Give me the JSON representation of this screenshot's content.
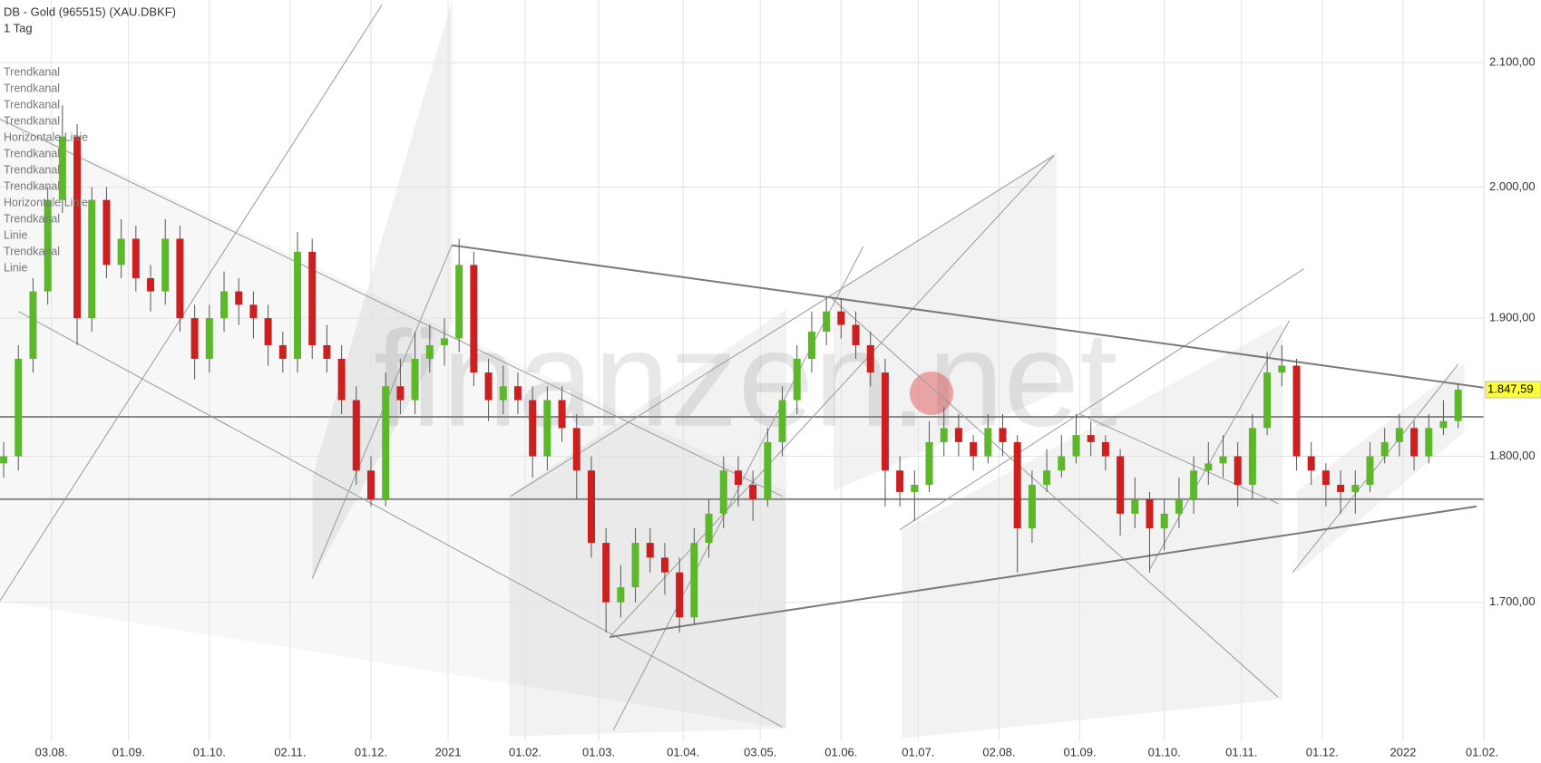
{
  "chart_data": {
    "type": "candlestick",
    "title": "DB - Gold (965515) (XAU.DBKF)",
    "subtitle": "1 Tag",
    "watermark": "finanzen.net",
    "drawing_labels": [
      "Trendkanal",
      "Trendkanal",
      "Trendkanal",
      "Trendkanal",
      "Horizontale Linie",
      "Trendkanal",
      "Trendkanal",
      "Trendkanal",
      "Horizontale Linie",
      "Trendkanal",
      "Linie",
      "Trendkanal",
      "Linie"
    ],
    "log_scale": true,
    "grid": true,
    "up_color": "#5cb82a",
    "down_color": "#cc1f1f",
    "xlim": [
      0,
      404
    ],
    "xticks": [
      {
        "value": 14,
        "label": "03.08."
      },
      {
        "value": 35,
        "label": "01.09."
      },
      {
        "value": 57,
        "label": "01.10."
      },
      {
        "value": 79,
        "label": "02.11."
      },
      {
        "value": 101,
        "label": "01.12."
      },
      {
        "value": 122,
        "label": "2021"
      },
      {
        "value": 143,
        "label": "01.02."
      },
      {
        "value": 163,
        "label": "01.03."
      },
      {
        "value": 186,
        "label": "01.04."
      },
      {
        "value": 207,
        "label": "03.05."
      },
      {
        "value": 229,
        "label": "01.06."
      },
      {
        "value": 250,
        "label": "01.07."
      },
      {
        "value": 272,
        "label": "02.08."
      },
      {
        "value": 294,
        "label": "01.09."
      },
      {
        "value": 317,
        "label": "01.10."
      },
      {
        "value": 338,
        "label": "01.11."
      },
      {
        "value": 360,
        "label": "01.12."
      },
      {
        "value": 382,
        "label": "2022"
      },
      {
        "value": 404,
        "label": "01.02."
      }
    ],
    "ylim": [
      1610,
      2152
    ],
    "yticks": [
      {
        "value": 1700,
        "label": "1.700,00"
      },
      {
        "value": 1800,
        "label": "1.800,00"
      },
      {
        "value": 1900,
        "label": "1.900,00"
      },
      {
        "value": 2000,
        "label": "2.000,00"
      },
      {
        "value": 2100,
        "label": "2.100,00"
      }
    ],
    "last_price": {
      "value": 1847.59,
      "label": "1.847,59"
    },
    "x": [
      1,
      5,
      9,
      13,
      17,
      21,
      25,
      29,
      33,
      37,
      41,
      45,
      49,
      53,
      57,
      61,
      65,
      69,
      73,
      77,
      81,
      85,
      89,
      93,
      97,
      101,
      105,
      109,
      113,
      117,
      121,
      125,
      129,
      133,
      137,
      141,
      145,
      149,
      153,
      157,
      161,
      165,
      169,
      173,
      177,
      181,
      185,
      189,
      193,
      197,
      201,
      205,
      209,
      213,
      217,
      221,
      225,
      229,
      233,
      237,
      241,
      245,
      249,
      253,
      257,
      261,
      265,
      269,
      273,
      277,
      281,
      285,
      289,
      293,
      297,
      301,
      305,
      309,
      313,
      317,
      321,
      325,
      329,
      333,
      337,
      341,
      345,
      349,
      353,
      357,
      361,
      365,
      369,
      373,
      377,
      381,
      385,
      389,
      393,
      397
    ],
    "open": [
      1795,
      1800,
      1870,
      1920,
      1990,
      2040,
      1900,
      1990,
      1940,
      1960,
      1930,
      1920,
      1960,
      1900,
      1870,
      1900,
      1920,
      1910,
      1900,
      1880,
      1870,
      1950,
      1880,
      1870,
      1840,
      1790,
      1770,
      1850,
      1840,
      1870,
      1880,
      1885,
      1940,
      1860,
      1840,
      1850,
      1840,
      1800,
      1840,
      1820,
      1790,
      1740,
      1700,
      1710,
      1740,
      1730,
      1720,
      1690,
      1740,
      1760,
      1790,
      1780,
      1770,
      1810,
      1840,
      1870,
      1890,
      1905,
      1895,
      1880,
      1860,
      1790,
      1775,
      1780,
      1810,
      1820,
      1810,
      1800,
      1820,
      1810,
      1750,
      1780,
      1790,
      1800,
      1815,
      1810,
      1800,
      1760,
      1770,
      1750,
      1760,
      1770,
      1790,
      1795,
      1800,
      1780,
      1820,
      1860,
      1865,
      1800,
      1790,
      1780,
      1775,
      1780,
      1800,
      1810,
      1820,
      1800,
      1820,
      1825
    ],
    "high": [
      1810,
      1880,
      1930,
      2000,
      2065,
      2050,
      2000,
      2000,
      1975,
      1970,
      1940,
      1975,
      1970,
      1910,
      1910,
      1935,
      1930,
      1920,
      1910,
      1890,
      1965,
      1960,
      1895,
      1880,
      1850,
      1800,
      1860,
      1870,
      1890,
      1895,
      1900,
      1960,
      1950,
      1870,
      1865,
      1860,
      1850,
      1850,
      1850,
      1830,
      1800,
      1750,
      1725,
      1750,
      1750,
      1740,
      1730,
      1750,
      1770,
      1800,
      1800,
      1790,
      1820,
      1850,
      1880,
      1905,
      1915,
      1915,
      1905,
      1890,
      1870,
      1800,
      1790,
      1825,
      1835,
      1830,
      1815,
      1830,
      1830,
      1815,
      1790,
      1805,
      1815,
      1830,
      1825,
      1815,
      1805,
      1785,
      1775,
      1770,
      1785,
      1800,
      1810,
      1815,
      1810,
      1830,
      1875,
      1880,
      1870,
      1810,
      1795,
      1790,
      1790,
      1810,
      1820,
      1830,
      1825,
      1830,
      1840,
      1852
    ],
    "low": [
      1785,
      1790,
      1860,
      1910,
      1980,
      1880,
      1890,
      1930,
      1930,
      1920,
      1905,
      1910,
      1890,
      1855,
      1860,
      1890,
      1895,
      1885,
      1865,
      1860,
      1860,
      1870,
      1860,
      1830,
      1780,
      1765,
      1765,
      1830,
      1830,
      1860,
      1865,
      1875,
      1850,
      1825,
      1830,
      1830,
      1785,
      1790,
      1810,
      1770,
      1730,
      1680,
      1690,
      1700,
      1720,
      1705,
      1680,
      1685,
      1730,
      1750,
      1765,
      1755,
      1765,
      1800,
      1830,
      1860,
      1880,
      1885,
      1870,
      1850,
      1765,
      1765,
      1755,
      1775,
      1800,
      1800,
      1790,
      1795,
      1800,
      1720,
      1740,
      1775,
      1785,
      1795,
      1800,
      1790,
      1745,
      1750,
      1720,
      1735,
      1750,
      1760,
      1780,
      1785,
      1765,
      1770,
      1815,
      1850,
      1790,
      1780,
      1765,
      1760,
      1760,
      1775,
      1795,
      1800,
      1790,
      1795,
      1815,
      1820
    ],
    "close": [
      1800,
      1870,
      1920,
      1990,
      2040,
      1900,
      1990,
      1940,
      1960,
      1930,
      1920,
      1960,
      1900,
      1870,
      1900,
      1920,
      1910,
      1900,
      1880,
      1870,
      1950,
      1880,
      1870,
      1840,
      1790,
      1770,
      1850,
      1840,
      1870,
      1880,
      1885,
      1940,
      1860,
      1840,
      1850,
      1840,
      1800,
      1840,
      1820,
      1790,
      1740,
      1700,
      1710,
      1740,
      1730,
      1720,
      1690,
      1740,
      1760,
      1790,
      1780,
      1770,
      1810,
      1840,
      1870,
      1890,
      1905,
      1895,
      1880,
      1860,
      1790,
      1775,
      1780,
      1810,
      1820,
      1810,
      1800,
      1820,
      1810,
      1750,
      1780,
      1790,
      1800,
      1815,
      1810,
      1800,
      1760,
      1770,
      1750,
      1760,
      1770,
      1790,
      1795,
      1800,
      1780,
      1820,
      1860,
      1865,
      1800,
      1790,
      1780,
      1775,
      1780,
      1800,
      1810,
      1820,
      1800,
      1820,
      1825,
      1847.59
    ],
    "horizontal_lines": [
      1828,
      1770
    ],
    "main_lines": [
      {
        "x": [
          123,
          404
        ],
        "y": [
          1955,
          1849
        ]
      },
      {
        "x": [
          166,
          402
        ],
        "y": [
          1677,
          1765
        ]
      }
    ],
    "trend_lines": [
      {
        "x": [
          0,
          213
        ],
        "y": [
          2054,
          1772
        ]
      },
      {
        "x": [
          5,
          213
        ],
        "y": [
          1905,
          1619
        ]
      },
      {
        "x": [
          0,
          104
        ],
        "y": [
          1701,
          2148
        ]
      },
      {
        "x": [
          85,
          123
        ],
        "y": [
          1716,
          1955
        ]
      },
      {
        "x": [
          167,
          235
        ],
        "y": [
          1617,
          1954
        ]
      },
      {
        "x": [
          166,
          287
        ],
        "y": [
          1677,
          2025
        ]
      },
      {
        "x": [
          139,
          287
        ],
        "y": [
          1772,
          2025
        ]
      },
      {
        "x": [
          226,
          348
        ],
        "y": [
          1916,
          1638
        ]
      },
      {
        "x": [
          245,
          355
        ],
        "y": [
          1749,
          1937
        ]
      },
      {
        "x": [
          313,
          351
        ],
        "y": [
          1722,
          1898
        ]
      },
      {
        "x": [
          352,
          397
        ],
        "y": [
          1720,
          1866
        ]
      },
      {
        "x": [
          294,
          348
        ],
        "y": [
          1830,
          1767
        ]
      }
    ]
  }
}
